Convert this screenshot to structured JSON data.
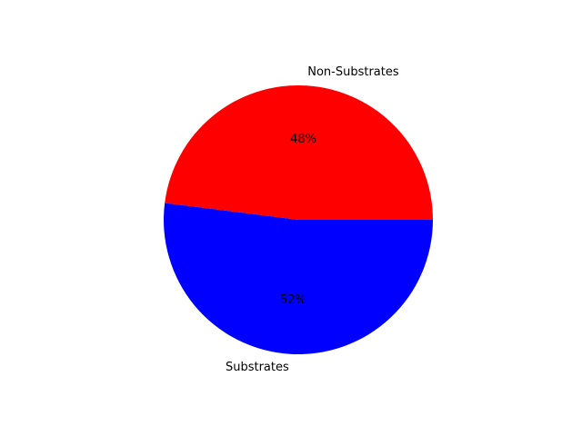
{
  "chart_data": {
    "type": "pie",
    "categories": [
      "Non-Substrates",
      "Substrates"
    ],
    "values": [
      48,
      52
    ],
    "percent_labels": [
      "48%",
      "52%"
    ],
    "colors": [
      "#ff0000",
      "#0000ff"
    ],
    "start_angle_deg": 0,
    "direction": "counterclockwise",
    "title": "",
    "legend": "none"
  }
}
